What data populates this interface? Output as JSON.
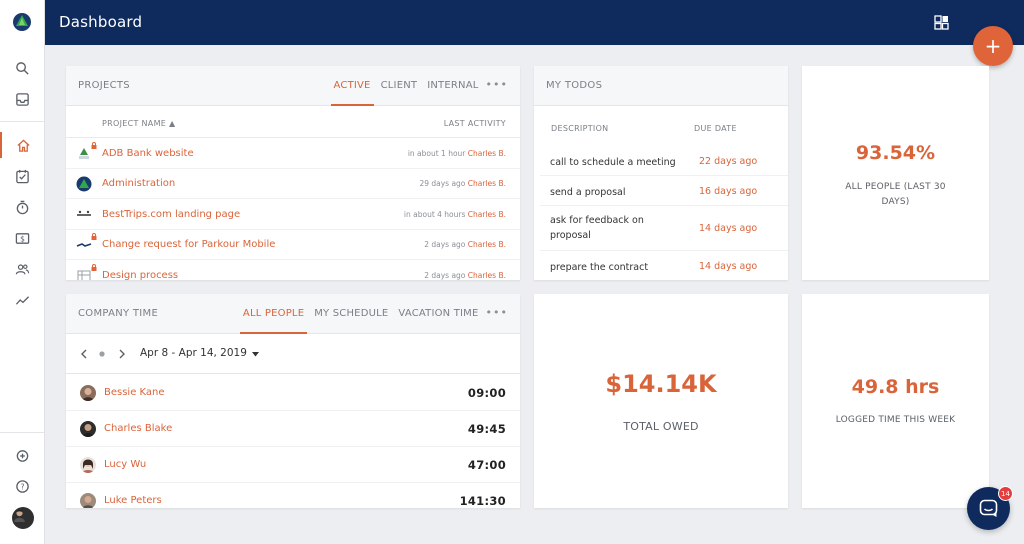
{
  "app": {
    "title": "Dashboard"
  },
  "sidebar": {
    "items": [
      {
        "name": "search",
        "icon": "search-icon"
      },
      {
        "name": "inbox",
        "icon": "inbox-icon"
      },
      {
        "name": "home",
        "icon": "home-icon",
        "active": true
      },
      {
        "name": "tasks",
        "icon": "checkbox-icon"
      },
      {
        "name": "time",
        "icon": "stopwatch-icon"
      },
      {
        "name": "billing",
        "icon": "dollar-icon"
      },
      {
        "name": "people",
        "icon": "people-icon"
      },
      {
        "name": "reports",
        "icon": "trend-icon"
      }
    ],
    "bottom": [
      {
        "name": "add-timer",
        "icon": "alarm-plus-icon"
      },
      {
        "name": "help",
        "icon": "help-icon"
      },
      {
        "name": "profile",
        "icon": "avatar"
      }
    ]
  },
  "fab": {
    "label": "+"
  },
  "projects": {
    "title": "PROJECTS",
    "tabs": [
      "ACTIVE",
      "CLIENT",
      "INTERNAL"
    ],
    "active_tab": "ACTIVE",
    "more": "•••",
    "col_name": "PROJECT NAME ▲",
    "col_activity": "LAST ACTIVITY",
    "rows": [
      {
        "name": "ADB Bank website",
        "when": "in about 1 hour",
        "who": "Charles B."
      },
      {
        "name": "Administration",
        "when": "29 days ago",
        "who": "Charles B."
      },
      {
        "name": "BestTrips.com landing page",
        "when": "in about 4 hours",
        "who": "Charles B."
      },
      {
        "name": "Change request for Parkour Mobile",
        "when": "2 days ago",
        "who": "Charles B."
      },
      {
        "name": "Design process",
        "when": "2 days ago",
        "who": "Charles B."
      }
    ]
  },
  "todos": {
    "title": "MY TODOS",
    "col_desc": "DESCRIPTION",
    "col_due": "DUE DATE",
    "rows": [
      {
        "desc": "call to schedule a meeting",
        "due": "22 days ago"
      },
      {
        "desc": "send a proposal",
        "due": "16 days ago"
      },
      {
        "desc": "ask for feedback on proposal",
        "due": "14 days ago"
      },
      {
        "desc": "prepare the contract",
        "due": "14 days ago"
      }
    ]
  },
  "stats": {
    "people": {
      "value": "93.54%",
      "label": "ALL PEOPLE (LAST 30 DAYS)"
    },
    "owed": {
      "value": "$14.14K",
      "label": "TOTAL OWED"
    },
    "logged": {
      "value": "49.8 hrs",
      "label": "LOGGED TIME THIS WEEK"
    }
  },
  "company_time": {
    "title": "COMPANY TIME",
    "tabs": [
      "ALL PEOPLE",
      "MY SCHEDULE",
      "VACATION TIME"
    ],
    "active_tab": "ALL PEOPLE",
    "more": "•••",
    "date_range": "Apr 8 - Apr 14, 2019",
    "people": [
      {
        "name": "Bessie Kane",
        "time": "09:00"
      },
      {
        "name": "Charles Blake",
        "time": "49:45"
      },
      {
        "name": "Lucy Wu",
        "time": "47:00"
      },
      {
        "name": "Luke Peters",
        "time": "141:30"
      }
    ]
  },
  "chat": {
    "badge": "14"
  },
  "colors": {
    "accent": "#d9643a",
    "topbar": "#0f2a5c",
    "background": "#eceef1"
  }
}
